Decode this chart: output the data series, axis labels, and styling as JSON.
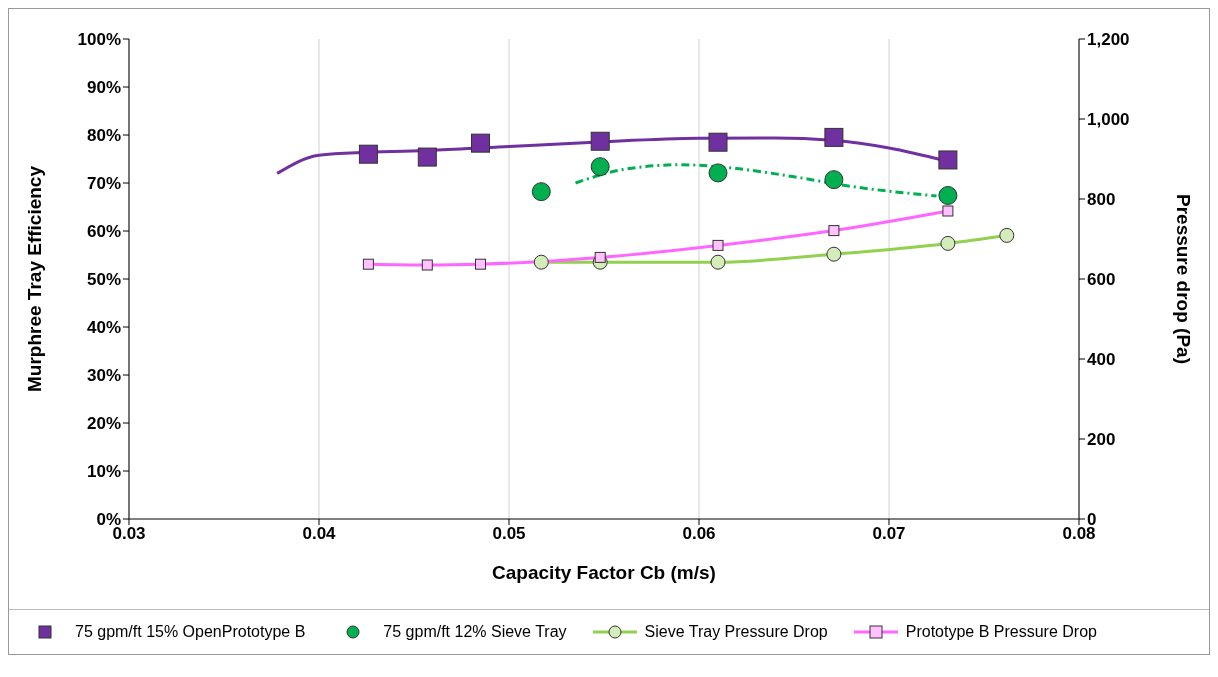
{
  "chart_data": {
    "type": "scatter",
    "xlabel": "Capacity Factor Cb (m/s)",
    "ylabel": "Murphree Tray Efficiency",
    "y2label": "Pressure drop (Pa)",
    "xlim": [
      0.03,
      0.08
    ],
    "xticks": [
      0.03,
      0.04,
      0.05,
      0.06,
      0.07,
      0.08
    ],
    "ylim": [
      0,
      100
    ],
    "yticks": [
      {
        "value": 0,
        "label": "0%"
      },
      {
        "value": 10,
        "label": "10%"
      },
      {
        "value": 20,
        "label": "20%"
      },
      {
        "value": 30,
        "label": "30%"
      },
      {
        "value": 40,
        "label": "40%"
      },
      {
        "value": 50,
        "label": "50%"
      },
      {
        "value": 60,
        "label": "60%"
      },
      {
        "value": 70,
        "label": "70%"
      },
      {
        "value": 80,
        "label": "80%"
      },
      {
        "value": 90,
        "label": "90%"
      },
      {
        "value": 100,
        "label": "100%"
      }
    ],
    "y2lim": [
      0,
      1200
    ],
    "y2ticks": [
      0,
      200,
      400,
      600,
      800,
      {
        "value": 1000,
        "label": "1,000"
      },
      {
        "value": 1200,
        "label": "1,200"
      }
    ],
    "grid": "x",
    "legend": "bottom",
    "series": [
      {
        "name": "75 gpm/ft 15% OpenPrototype B",
        "marker": "square",
        "color": "#7030a0",
        "x": [
          0.0426,
          0.0457,
          0.0485,
          0.0548,
          0.061,
          0.0671,
          0.0731
        ],
        "values": [
          76.0,
          75.4,
          78.3,
          78.7,
          78.5,
          79.5,
          74.8
        ]
      },
      {
        "name": "75 gpm/ft 12% Sieve Tray",
        "marker": "circle",
        "color": "#00b050",
        "x": [
          0.0517,
          0.0548,
          0.061,
          0.0671,
          0.0731
        ],
        "values": [
          68.2,
          73.4,
          72.1,
          70.7,
          67.4
        ]
      },
      {
        "name": "Sieve Tray Pressure Drop",
        "type": "line",
        "marker": "circle",
        "line_style": "solid",
        "axis": "y2",
        "color": "#92d050",
        "x": [
          0.0517,
          0.0548,
          0.061,
          0.0671,
          0.0731,
          0.0762
        ],
        "values": [
          642,
          642,
          642,
          662,
          689,
          709
        ]
      },
      {
        "name": "Prototype B Pressure Drop",
        "type": "line",
        "marker": "square",
        "line_style": "solid",
        "axis": "y2",
        "color": "#ff66ff",
        "x": [
          0.0426,
          0.0457,
          0.0485,
          0.0548,
          0.061,
          0.0671,
          0.0731
        ],
        "values": [
          637,
          635,
          637,
          654,
          684,
          721,
          770
        ]
      },
      {
        "type": "line",
        "marker": "none",
        "line_style": "solid",
        "color": "#7030a0",
        "x": [
          0.0378,
          0.04,
          0.0426,
          0.046,
          0.05,
          0.055,
          0.06,
          0.064,
          0.067,
          0.07,
          0.073
        ],
        "values": [
          72.0,
          75.8,
          76.4,
          76.8,
          77.6,
          78.6,
          79.3,
          79.4,
          78.9,
          77.3,
          74.6
        ]
      },
      {
        "type": "line",
        "marker": "none",
        "line_style": "dashed",
        "color": "#00b050",
        "x": [
          0.0535,
          0.056,
          0.059,
          0.062,
          0.065,
          0.068,
          0.0725
        ],
        "values": [
          70.0,
          72.8,
          73.8,
          73.0,
          71.3,
          69.3,
          67.3
        ]
      }
    ]
  }
}
